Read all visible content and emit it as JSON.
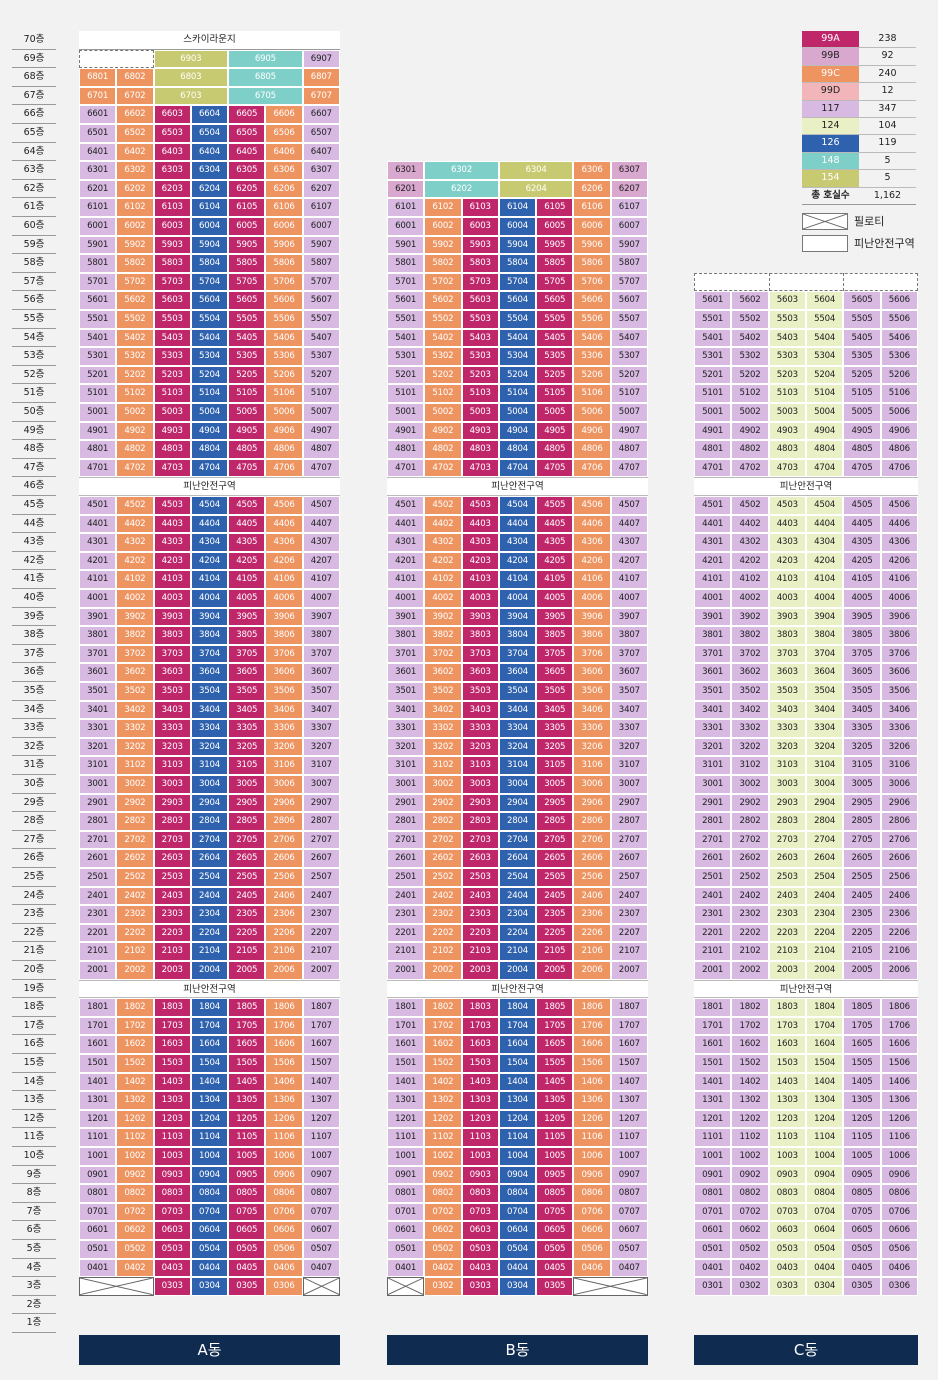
{
  "floor_labels": [
    "70층",
    "69층",
    "68층",
    "67층",
    "66층",
    "65층",
    "64층",
    "63층",
    "62층",
    "61층",
    "60층",
    "59층",
    "58층",
    "57층",
    "56층",
    "55층",
    "54층",
    "53층",
    "52층",
    "51층",
    "50층",
    "49층",
    "48층",
    "47층",
    "46층",
    "45층",
    "44층",
    "43층",
    "42층",
    "41층",
    "40층",
    "39층",
    "38층",
    "37층",
    "36층",
    "35층",
    "34층",
    "33층",
    "32층",
    "31층",
    "30층",
    "29층",
    "28층",
    "27층",
    "26층",
    "25층",
    "24층",
    "23층",
    "22층",
    "21층",
    "20층",
    "19층",
    "18층",
    "17층",
    "16층",
    "15층",
    "14층",
    "13층",
    "12층",
    "11층",
    "10층",
    "9층",
    "8층",
    "7층",
    "6층",
    "5층",
    "4층",
    "3층",
    "2층",
    "1층"
  ],
  "colors": {
    "99A": "#c0276b",
    "99B": "#d9a8cf",
    "99C": "#ee9461",
    "99D": "#f2b5ba",
    "117": "#d7b9e2",
    "124": "#e9f0c5",
    "126": "#2f62ae",
    "148": "#7fcfc9",
    "154": "#c8ca71"
  },
  "legend": [
    {
      "type": "99A",
      "count": "238"
    },
    {
      "type": "99B",
      "count": "92"
    },
    {
      "type": "99C",
      "count": "240"
    },
    {
      "type": "99D",
      "count": "12"
    },
    {
      "type": "117",
      "count": "347"
    },
    {
      "type": "124",
      "count": "104"
    },
    {
      "type": "126",
      "count": "119"
    },
    {
      "type": "148",
      "count": "5"
    },
    {
      "type": "154",
      "count": "5"
    }
  ],
  "legend_total_label": "총 호실수",
  "legend_total_value": "1,162",
  "pilotis_label": "필로티",
  "refuge_label": "피난안전구역",
  "skylounge_label": "스카이라운지",
  "buildings": {
    "A": {
      "label": "A동",
      "col_types": [
        "117",
        "99C",
        "99A",
        "126",
        "99A",
        "99C",
        "117"
      ],
      "special": {
        "69": [
          null,
          null,
          {
            "num": "6903",
            "type": "154",
            "span": 2
          },
          null,
          {
            "num": "6905",
            "type": "148",
            "span": 2
          },
          null,
          {
            "num": "6907",
            "type": "117"
          }
        ],
        "68": [
          {
            "num": "6801",
            "type": "99C"
          },
          {
            "num": "6802",
            "type": "99C"
          },
          {
            "num": "6803",
            "type": "154",
            "span": 2
          },
          null,
          {
            "num": "6805",
            "type": "148",
            "span": 2
          },
          null,
          {
            "num": "6807",
            "type": "99C"
          }
        ],
        "67": [
          {
            "num": "6701",
            "type": "99C"
          },
          {
            "num": "6702",
            "type": "99C"
          },
          {
            "num": "6703",
            "type": "154",
            "span": 2
          },
          null,
          {
            "num": "6705",
            "type": "148",
            "span": 2
          },
          null,
          {
            "num": "6707",
            "type": "99C"
          }
        ],
        "3": [
          null,
          null,
          {
            "num": "0303",
            "type": "99A"
          },
          {
            "num": "0304",
            "type": "126"
          },
          {
            "num": "0305",
            "type": "99A"
          },
          {
            "num": "0306",
            "type": "99C"
          },
          null
        ]
      }
    },
    "B": {
      "label": "B동",
      "col_types": [
        "117",
        "99C",
        "99A",
        "126",
        "99A",
        "99C",
        "117"
      ],
      "special": {
        "63": [
          {
            "num": "6301",
            "type": "99B"
          },
          {
            "num": "6302",
            "type": "148",
            "span": 2
          },
          null,
          {
            "num": "6304",
            "type": "154",
            "span": 2
          },
          null,
          {
            "num": "6306",
            "type": "99C"
          },
          {
            "num": "6307",
            "type": "99B"
          }
        ],
        "62": [
          {
            "num": "6201",
            "type": "99B"
          },
          {
            "num": "6202",
            "type": "148",
            "span": 2
          },
          null,
          {
            "num": "6204",
            "type": "154",
            "span": 2
          },
          null,
          {
            "num": "6206",
            "type": "99C"
          },
          {
            "num": "6207",
            "type": "99B"
          }
        ],
        "3": [
          null,
          {
            "num": "0302",
            "type": "99C"
          },
          {
            "num": "0303",
            "type": "99A"
          },
          {
            "num": "0304",
            "type": "126"
          },
          {
            "num": "0305",
            "type": "99A"
          },
          null,
          null
        ]
      }
    },
    "C": {
      "label": "C동",
      "col_types": [
        "117",
        "117",
        "124",
        "124",
        "117",
        "117"
      ],
      "special": {
        "3": [
          {
            "num": "0301",
            "type": "117"
          },
          {
            "num": "0302",
            "type": "117"
          },
          {
            "num": "0303",
            "type": "124"
          },
          {
            "num": "0304",
            "type": "124"
          },
          {
            "num": "0305",
            "type": "117"
          },
          {
            "num": "0306",
            "type": "117"
          }
        ]
      }
    }
  }
}
